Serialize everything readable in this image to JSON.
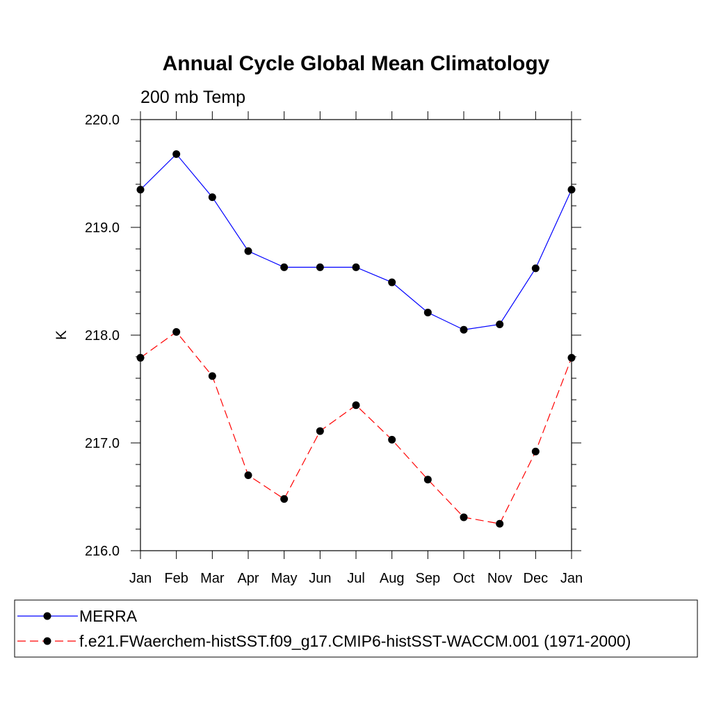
{
  "chart_data": {
    "type": "line",
    "title": "Annual Cycle Global Mean Climatology",
    "subtitle": "200 mb Temp",
    "xlabel": "",
    "ylabel": "K",
    "categories": [
      "Jan",
      "Feb",
      "Mar",
      "Apr",
      "May",
      "Jun",
      "Jul",
      "Aug",
      "Sep",
      "Oct",
      "Nov",
      "Dec",
      "Jan"
    ],
    "yticks": [
      "216.0",
      "217.0",
      "218.0",
      "219.0",
      "220.0"
    ],
    "ylim": [
      216.0,
      220.0
    ],
    "grid": false,
    "legend_position": "bottom",
    "series": [
      {
        "name": "MERRA",
        "color": "#0000ff",
        "dash": "solid",
        "marker": "filled-circle",
        "values": [
          219.35,
          219.68,
          219.28,
          218.78,
          218.63,
          218.63,
          218.63,
          218.49,
          218.21,
          218.05,
          218.1,
          218.62,
          219.35
        ]
      },
      {
        "name": "f.e21.FWaerchem-histSST.f09_g17.CMIP6-histSST-WACCM.001 (1971-2000)",
        "color": "#ff0000",
        "dash": "dashed",
        "marker": "filled-circle",
        "values": [
          217.79,
          218.03,
          217.62,
          216.7,
          216.48,
          217.11,
          217.35,
          217.03,
          216.66,
          216.31,
          216.25,
          216.92,
          217.79
        ]
      }
    ]
  }
}
